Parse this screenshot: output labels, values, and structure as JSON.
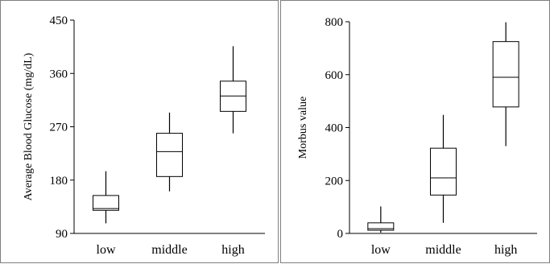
{
  "chart_data": [
    {
      "type": "box",
      "title": "",
      "xlabel": "",
      "ylabel": "Average Blood Glucose (mg/dL)",
      "ylim": [
        90,
        450
      ],
      "yticks": [
        "90",
        "180",
        "270",
        "360",
        "450"
      ],
      "grid": false,
      "categories": [
        "low",
        "middle",
        "high"
      ],
      "boxes": [
        {
          "category": "low",
          "min": 107,
          "q1": 129,
          "median": 132,
          "q3": 154,
          "max": 195
        },
        {
          "category": "middle",
          "min": 161,
          "q1": 186,
          "median": 228,
          "q3": 259,
          "max": 294
        },
        {
          "category": "high",
          "min": 259,
          "q1": 296,
          "median": 322,
          "q3": 347,
          "max": 406
        }
      ]
    },
    {
      "type": "box",
      "title": "",
      "xlabel": "",
      "ylabel": "Morbus value",
      "ylim": [
        0,
        800
      ],
      "yticks": [
        "0",
        "200",
        "400",
        "600",
        "800"
      ],
      "grid": false,
      "categories": [
        "low",
        "middle",
        "high"
      ],
      "boxes": [
        {
          "category": "low",
          "min": 3,
          "q1": 12,
          "median": 18,
          "q3": 40,
          "max": 102
        },
        {
          "category": "middle",
          "min": 40,
          "q1": 145,
          "median": 210,
          "q3": 322,
          "max": 448
        },
        {
          "category": "high",
          "min": 330,
          "q1": 478,
          "median": 590,
          "q3": 725,
          "max": 798
        }
      ]
    }
  ]
}
